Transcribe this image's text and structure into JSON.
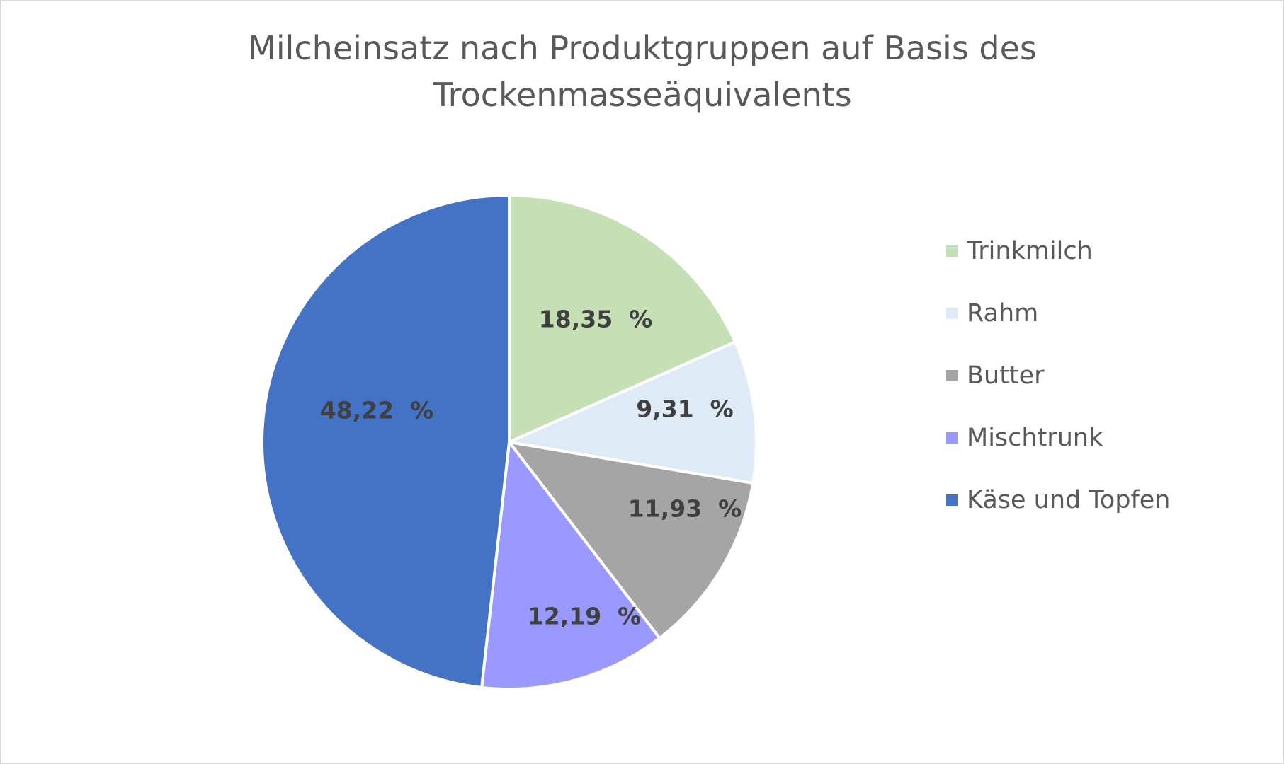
{
  "chart_data": {
    "type": "pie",
    "title": "Milcheinsatz nach Produktgruppen auf Basis des Trockenmasseäquivalents",
    "title_lines": [
      "Milcheinsatz nach Produktgruppen auf Basis des",
      "Trockenmasseäquivalents"
    ],
    "categories": [
      "Trinkmilch",
      "Rahm",
      "Butter",
      "Mischtrunk",
      "Käse und Topfen"
    ],
    "values": [
      18.35,
      9.31,
      11.93,
      12.19,
      48.22
    ],
    "data_labels": [
      "18,35  %",
      "9,31  %",
      "11,93  %",
      "12,19  %",
      "48,22  %"
    ],
    "colors": [
      "#c5e0b4",
      "#deebf7",
      "#a5a5a5",
      "#9999ff",
      "#4472c4"
    ],
    "unit": "%",
    "legend_position": "right",
    "start_angle": "12 o'clock, clockwise"
  }
}
